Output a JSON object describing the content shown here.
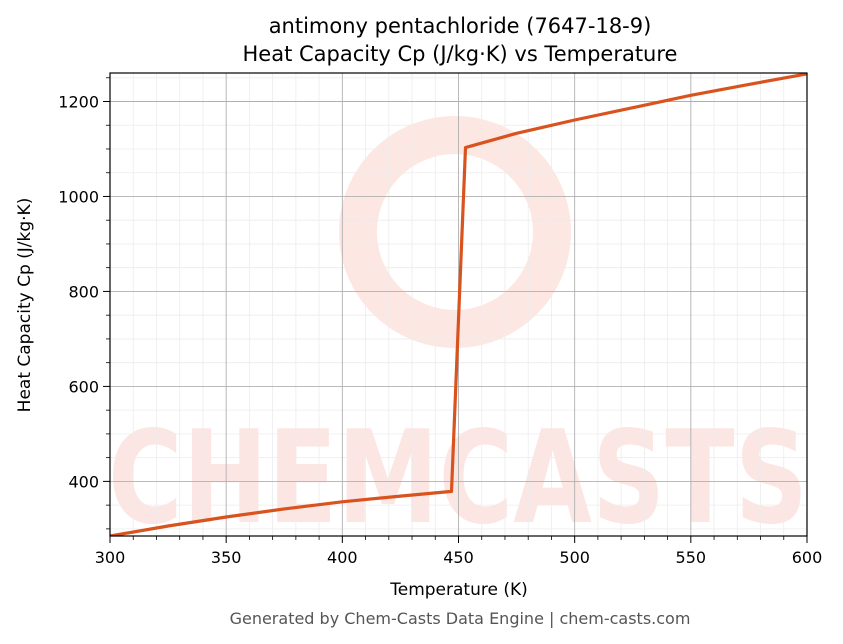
{
  "chart_data": {
    "type": "line",
    "title": "antimony pentachloride (7647-18-9)",
    "subtitle": "Heat Capacity Cp (J/kg·K) vs Temperature",
    "xlabel": "Temperature (K)",
    "ylabel": "Heat Capacity Cp (J/kg·K)",
    "xlim": [
      300,
      600
    ],
    "ylim": [
      285,
      1260
    ],
    "xticks": [
      300,
      350,
      400,
      450,
      500,
      550,
      600
    ],
    "yticks": [
      400,
      600,
      800,
      1000,
      1200
    ],
    "grid": true,
    "legend": "none",
    "series": [
      {
        "color": "#d9531e",
        "x": [
          300,
          325,
          350,
          375,
          400,
          425,
          447,
          453,
          475,
          500,
          525,
          550,
          575,
          600
        ],
        "y": [
          285,
          306,
          325,
          342,
          357,
          369,
          379,
          1103,
          1133,
          1161,
          1187,
          1213,
          1236,
          1258
        ]
      }
    ]
  },
  "watermark": "CHEMCASTS",
  "footer": "Generated by Chem-Casts Data Engine | chem-casts.com"
}
